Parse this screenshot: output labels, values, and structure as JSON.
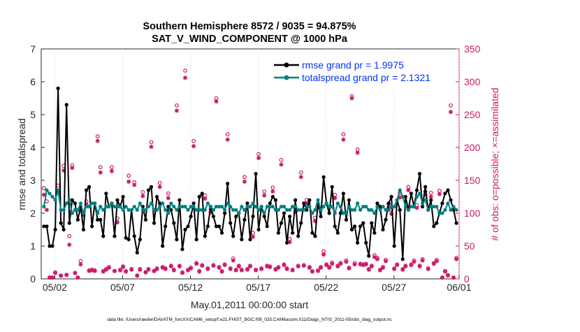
{
  "chart_data": {
    "type": "line",
    "title": "Southern Hemisphere 8572 / 9035 = 94.875%",
    "subtitle": "SAT_V_WIND_COMPONENT @ 1000 hPa",
    "xlabel": "May.01,2011 00:00:00 start",
    "ylabel_left": "rmse and totalspread",
    "ylabel_right": "# of obs: o=possible; ×=assimilated",
    "footer": "data file: /Users/raeder/DAI/ATM_forcXX/CAM6_setup/f.e21.FHIST_BGC.f09_025.CAM6assim.011/Diags_NTrS_2011-05/obs_diag_output.nc",
    "xlim": [
      0.5,
      31.3
    ],
    "ylim_left": [
      0,
      7
    ],
    "ylim_right": [
      0,
      350
    ],
    "x_ticks": [
      1.5,
      6.5,
      11.5,
      16.5,
      21.5,
      26.5,
      31.5
    ],
    "x_tick_labels": [
      "05/02",
      "05/07",
      "05/12",
      "05/17",
      "05/22",
      "05/27",
      "06/01"
    ],
    "y_ticks_left": [
      0,
      1,
      2,
      3,
      4,
      5,
      6,
      7
    ],
    "y_ticks_right": [
      0,
      50,
      100,
      150,
      200,
      250,
      300,
      350
    ],
    "legend_position": "top-right",
    "colors": {
      "rmse": "#000000",
      "spread": "#008080",
      "obs": "#cc1a66",
      "axis": "#262626",
      "right_axis": "#cc1a66",
      "legend_text": "#0033ff"
    },
    "series": [
      {
        "name": "rmse grand pr = 1.9975",
        "axis": "left",
        "values": [
          1.6,
          1.6,
          1.0,
          1.0,
          1.5,
          5.8,
          1.7,
          1.5,
          5.3,
          1.7,
          2.4,
          2.3,
          1.8,
          2.2,
          1.5,
          2.7,
          2.8,
          1.6,
          2.3,
          1.8,
          1.8,
          1.3,
          2.6,
          2.2,
          2.3,
          1.3,
          2.4,
          2.2,
          2.5,
          1.25,
          1.2,
          2.1,
          1.3,
          0.8,
          1.2,
          2.2,
          1.8,
          2.7,
          2.8,
          1.7,
          2.5,
          2.3,
          1.0,
          1.6,
          2.2,
          2.1,
          1.7,
          1.2,
          2.4,
          0.9,
          1.5,
          1.6,
          1.9,
          2.3,
          1.2,
          2.5,
          2.6,
          1.3,
          1.6,
          2.2,
          1.9,
          1.6,
          1.6,
          1.4,
          2.0,
          2.9,
          1.7,
          1.3,
          1.9,
          2.0,
          1.2,
          1.8,
          2.3,
          1.2,
          1.9,
          3.2,
          1.5,
          2.2,
          1.9,
          1.6,
          2.3,
          2.5,
          2.4,
          1.4,
          1.7,
          2.0,
          1.1,
          1.9,
          1.4,
          2.4,
          1.3,
          1.7,
          2.3,
          2.1,
          2.4,
          1.4,
          1.3,
          2.3,
          1.9,
          3.1,
          2.3,
          2.0,
          2.8,
          1.6,
          1.4,
          2.0,
          2.6,
          1.8,
          2.4,
          1.5,
          1.6,
          1.1,
          1.6,
          1.7,
          1.1,
          0.7,
          1.7,
          1.4,
          2.3,
          2.2,
          1.5,
          1.8,
          2.3,
          2.5,
          1.0,
          2.4,
          2.1,
          0.6,
          2.5,
          2.1,
          2.6,
          2.2,
          2.7,
          3.2,
          2.2,
          2.8,
          2.1,
          2.4,
          1.6,
          1.7,
          2.0,
          2.3,
          2.6,
          2.7,
          2.4,
          2.1,
          1.7
        ]
      },
      {
        "name": "totalspread grand pr = 2.1321",
        "axis": "left",
        "values": [
          2.2,
          2.7,
          2.6,
          2.5,
          2.4,
          2.7,
          2.1,
          2.1,
          2.3,
          2.4,
          2.0,
          2.1,
          2.1,
          2.3,
          2.0,
          2.2,
          2.2,
          2.3,
          2.3,
          2.0,
          2.2,
          2.1,
          2.2,
          2.2,
          2.3,
          2.2,
          2.2,
          2.2,
          2.1,
          2.2,
          2.1,
          2.1,
          2.2,
          2.1,
          2.3,
          2.1,
          2.1,
          2.2,
          2.3,
          2.1,
          2.1,
          2.2,
          2.3,
          2.1,
          2.0,
          2.3,
          2.2,
          2.1,
          2.2,
          2.2,
          2.2,
          2.1,
          2.2,
          2.2,
          2.1,
          2.1,
          2.1,
          2.1,
          2.3,
          2.2,
          2.1,
          2.2,
          2.2,
          2.2,
          2.1,
          2.3,
          2.2,
          2.1,
          2.1,
          2.0,
          2.2,
          2.1,
          2.2,
          2.2,
          2.3,
          2.2,
          2.1,
          2.2,
          2.0,
          2.2,
          2.2,
          2.2,
          2.1,
          2.1,
          2.2,
          2.2,
          2.1,
          2.1,
          2.2,
          2.2,
          2.1,
          2.1,
          2.1,
          2.2,
          2.2,
          2.0,
          2.1,
          2.4,
          2.1,
          2.2,
          2.3,
          2.2,
          2.2,
          2.0,
          2.3,
          2.2,
          2.0,
          2.0,
          2.2,
          2.1,
          2.1,
          2.3,
          2.1,
          2.2,
          2.2,
          2.1,
          2.1,
          2.0,
          2.2,
          2.1,
          2.2,
          2.1,
          2.1,
          2.2,
          2.2,
          2.4,
          2.7,
          2.5,
          2.2,
          2.1,
          2.2,
          2.2,
          2.5,
          2.6,
          2.3,
          2.4,
          2.1,
          2.2,
          2.2,
          2.2,
          2.0,
          2.0,
          2.1,
          2.3,
          2.1,
          2.2,
          2.1
        ]
      },
      {
        "name": "obs possible",
        "axis": "right",
        "marker": "o",
        "values": [
          138,
          118,
          2,
          2,
          10,
          142,
          5,
          172,
          6,
          65,
          173,
          9,
          2,
          27,
          103,
          118,
          13,
          14,
          13,
          217,
          170,
          12,
          15,
          18,
          170,
          12,
          92,
          14,
          19,
          12,
          157,
          15,
          147,
          5,
          15,
          132,
          10,
          15,
          208,
          12,
          16,
          146,
          18,
          16,
          130,
          20,
          14,
          264,
          20,
          10,
          317,
          14,
          17,
          210,
          24,
          12,
          21,
          127,
          16,
          106,
          21,
          275,
          18,
          12,
          22,
          220,
          16,
          31,
          14,
          20,
          14,
          155,
          15,
          20,
          70,
          14,
          190,
          16,
          133,
          20,
          19,
          139,
          15,
          18,
          181,
          22,
          16,
          61,
          14,
          108,
          20,
          162,
          21,
          120,
          18,
          12,
          93,
          13,
          18,
          42,
          22,
          18,
          25,
          128,
          20,
          24,
          220,
          28,
          17,
          278,
          24,
          197,
          23,
          22,
          23,
          15,
          20,
          36,
          32,
          14,
          18,
          29,
          114,
          105,
          16,
          22,
          131,
          15,
          20,
          140,
          22,
          28,
          112,
          20,
          30,
          133,
          16,
          131,
          24,
          29,
          134,
          2,
          12,
          6,
          264,
          2,
          32
        ]
      },
      {
        "name": "obs assimilated",
        "axis": "right",
        "marker": "*",
        "values": [
          128,
          105,
          2,
          2,
          9,
          131,
          5,
          165,
          6,
          52,
          169,
          9,
          2,
          22,
          97,
          113,
          12,
          13,
          12,
          210,
          162,
          11,
          14,
          17,
          164,
          12,
          86,
          13,
          18,
          11,
          148,
          14,
          143,
          5,
          14,
          126,
          10,
          14,
          201,
          12,
          15,
          140,
          17,
          15,
          123,
          19,
          13,
          256,
          19,
          9,
          306,
          13,
          16,
          202,
          23,
          11,
          20,
          122,
          15,
          101,
          20,
          270,
          17,
          11,
          21,
          212,
          15,
          28,
          13,
          19,
          13,
          148,
          14,
          19,
          64,
          13,
          184,
          15,
          127,
          19,
          18,
          133,
          14,
          17,
          174,
          21,
          15,
          56,
          13,
          102,
          19,
          155,
          20,
          115,
          17,
          11,
          88,
          12,
          17,
          37,
          21,
          17,
          23,
          123,
          19,
          23,
          212,
          26,
          16,
          275,
          22,
          192,
          22,
          21,
          22,
          14,
          19,
          33,
          30,
          13,
          17,
          27,
          108,
          99,
          15,
          21,
          124,
          14,
          19,
          135,
          21,
          26,
          108,
          19,
          28,
          128,
          15,
          125,
          23,
          27,
          129,
          2,
          11,
          5,
          254,
          2,
          30
        ]
      }
    ]
  }
}
